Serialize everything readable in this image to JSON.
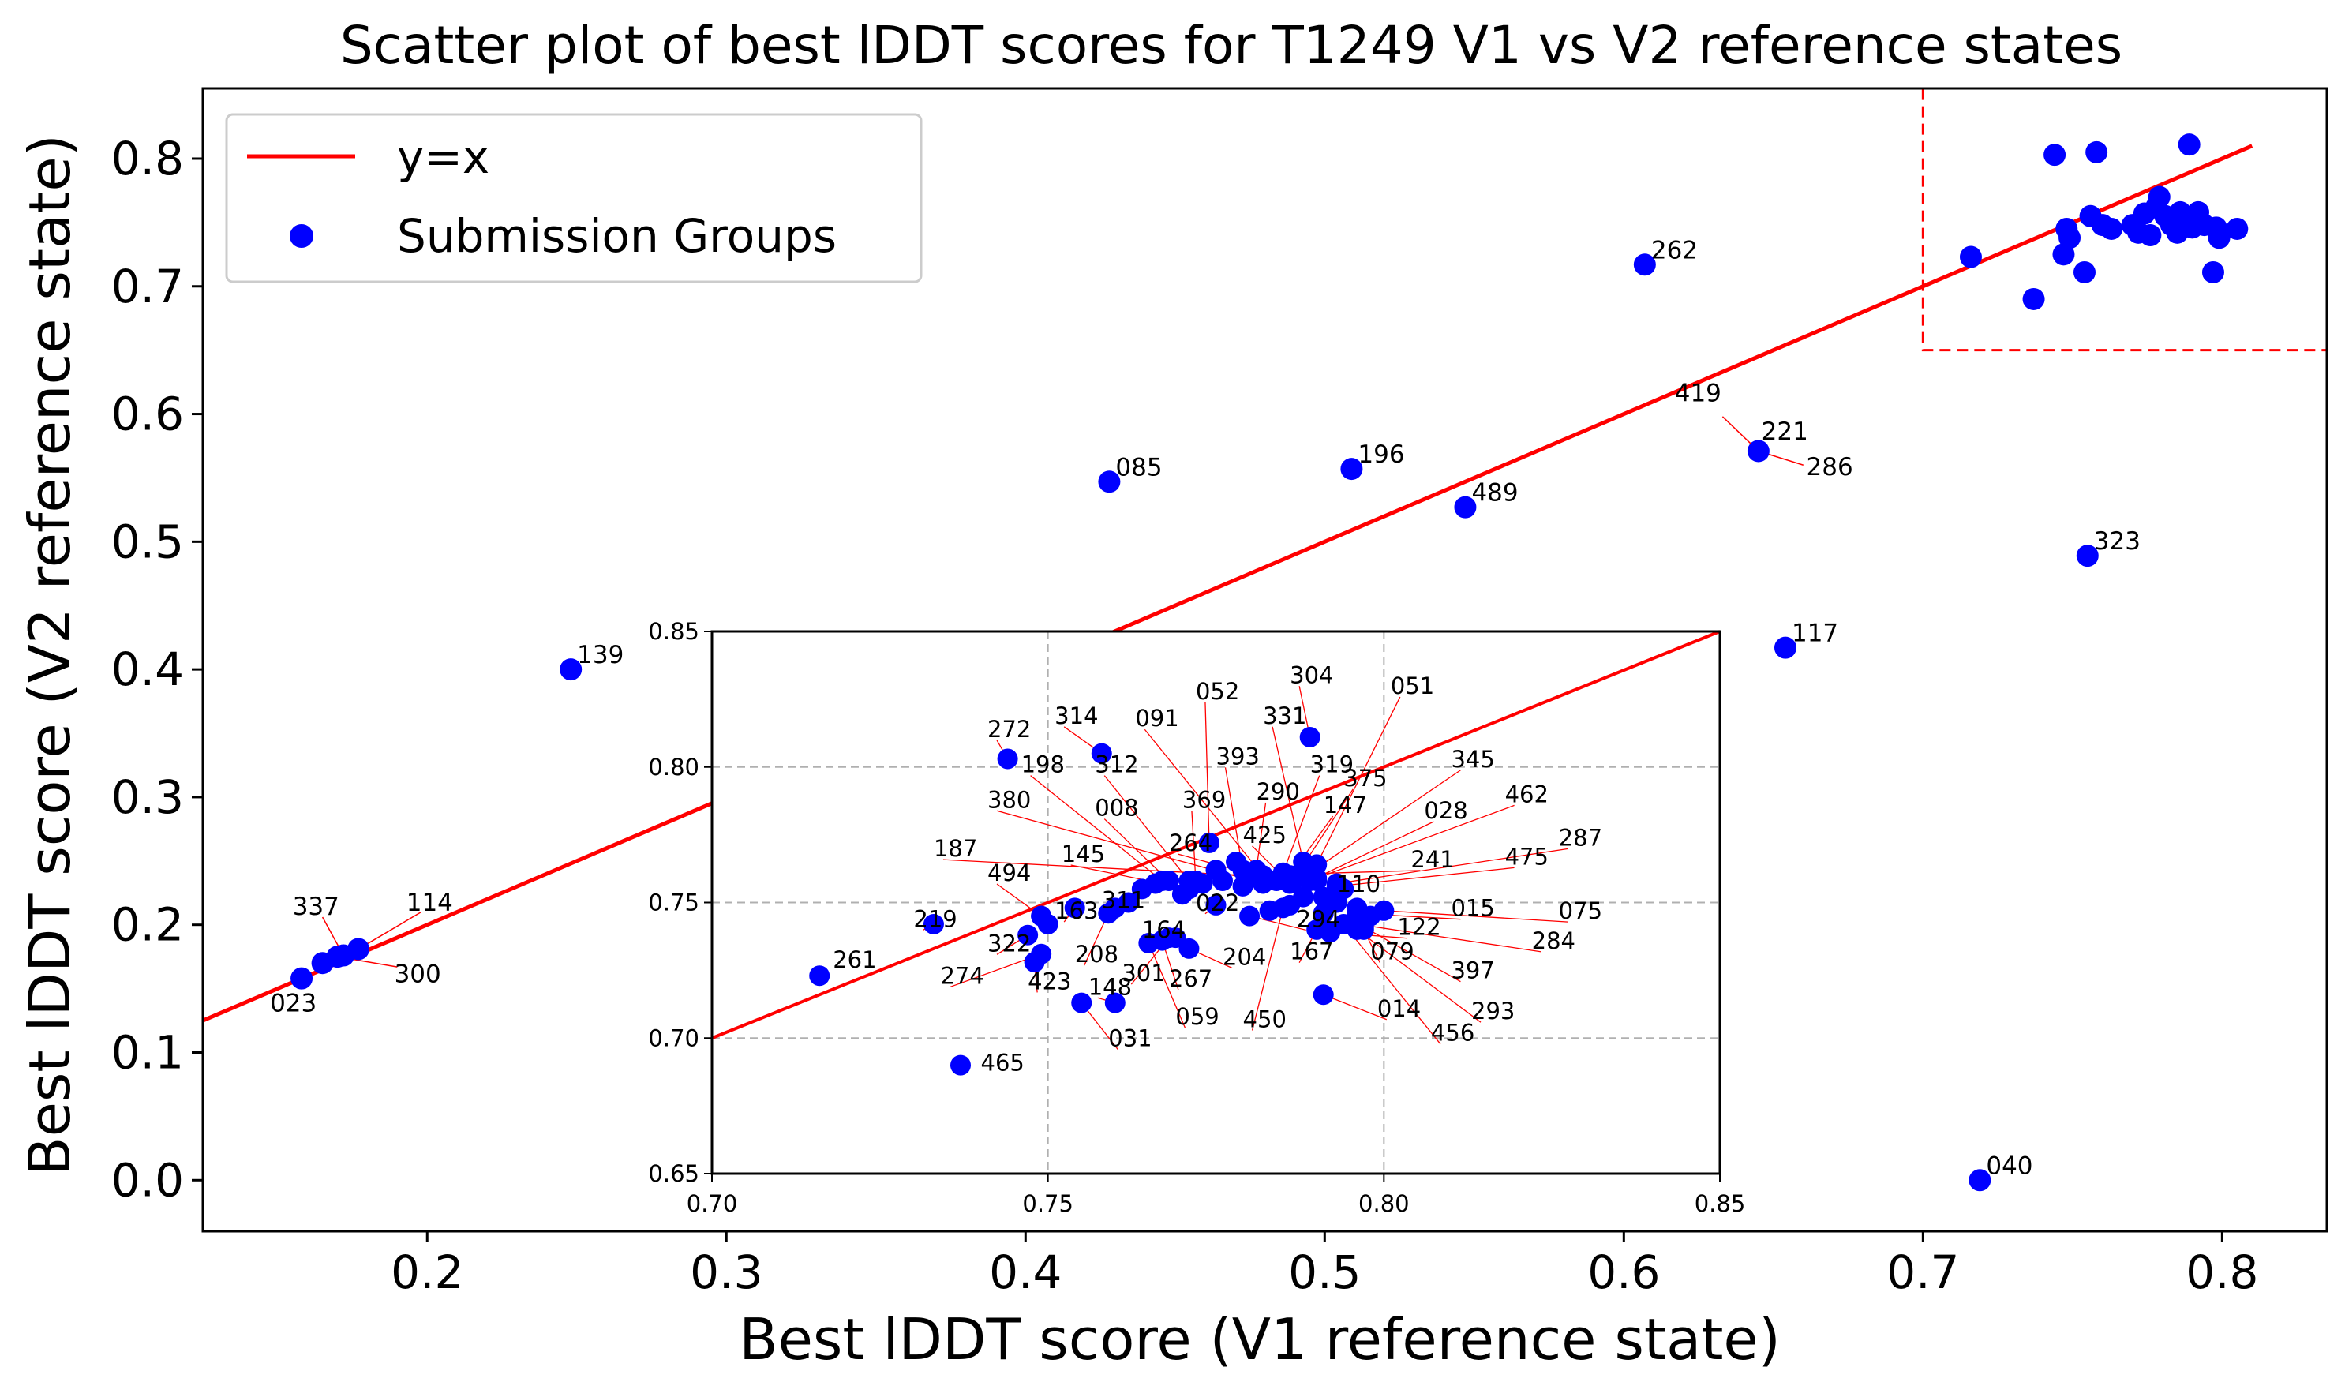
{
  "chart_data": {
    "type": "scatter",
    "title": "Scatter plot of best lDDT scores for T1249 V1 vs V2 reference states",
    "xlabel": "Best lDDT score (V1 reference state)",
    "ylabel": "Best lDDT score (V2 reference state)",
    "xlim": [
      0.125,
      0.835
    ],
    "ylim": [
      -0.04,
      0.855
    ],
    "xticks": [
      "0.2",
      "0.3",
      "0.4",
      "0.5",
      "0.6",
      "0.7",
      "0.8"
    ],
    "yticks": [
      "0.0",
      "0.1",
      "0.2",
      "0.3",
      "0.4",
      "0.5",
      "0.6",
      "0.7",
      "0.8"
    ],
    "grid": false,
    "legend_position": "top-left",
    "legend": [
      "y=x",
      "Submission Groups"
    ],
    "colors": {
      "line": "#ff0000",
      "points": "#0000ff",
      "annotation_arrow": "#ff0000",
      "highlight_box": "#ff0000"
    },
    "reference_line": {
      "label": "y=x",
      "x": [
        0.125,
        0.81
      ],
      "y": [
        0.125,
        0.81
      ]
    },
    "highlight_box": {
      "x": [
        0.7,
        0.835
      ],
      "y": [
        0.65,
        0.855
      ]
    },
    "series": [
      {
        "name": "Submission Groups",
        "points": [
          {
            "x": 0.158,
            "y": 0.158,
            "label": "023"
          },
          {
            "x": 0.165,
            "y": 0.17,
            "label": ""
          },
          {
            "x": 0.172,
            "y": 0.176,
            "label": "337"
          },
          {
            "x": 0.177,
            "y": 0.181,
            "label": "114"
          },
          {
            "x": 0.17,
            "y": 0.175,
            "label": "300"
          },
          {
            "x": 0.248,
            "y": 0.4,
            "label": "139"
          },
          {
            "x": 0.428,
            "y": 0.547,
            "label": "085"
          },
          {
            "x": 0.509,
            "y": 0.557,
            "label": "196"
          },
          {
            "x": 0.547,
            "y": 0.527,
            "label": "489"
          },
          {
            "x": 0.607,
            "y": 0.717,
            "label": "262"
          },
          {
            "x": 0.645,
            "y": 0.571,
            "label": "221"
          },
          {
            "x": 0.654,
            "y": 0.417,
            "label": "117"
          },
          {
            "x": 0.755,
            "y": 0.489,
            "label": "323"
          },
          {
            "x": 0.719,
            "y": 0.0,
            "label": "040"
          }
        ]
      }
    ],
    "inset": {
      "xlim": [
        0.7,
        0.85
      ],
      "ylim": [
        0.65,
        0.85
      ],
      "xticks": [
        "0.70",
        "0.75",
        "0.80",
        "0.85"
      ],
      "yticks": [
        "0.65",
        "0.70",
        "0.75",
        "0.80",
        "0.85"
      ],
      "grid": true,
      "points": [
        {
          "x": 0.716,
          "y": 0.723,
          "label": "261",
          "lx": 0.718,
          "ly": 0.726
        },
        {
          "x": 0.737,
          "y": 0.69,
          "label": "465",
          "lx": 0.74,
          "ly": 0.688
        },
        {
          "x": 0.744,
          "y": 0.803,
          "label": "272",
          "lx": 0.741,
          "ly": 0.811
        },
        {
          "x": 0.758,
          "y": 0.805,
          "label": "314",
          "lx": 0.751,
          "ly": 0.816
        },
        {
          "x": 0.789,
          "y": 0.811,
          "label": "304",
          "lx": 0.786,
          "ly": 0.831
        },
        {
          "x": 0.774,
          "y": 0.772,
          "label": "052",
          "lx": 0.772,
          "ly": 0.825
        },
        {
          "x": 0.788,
          "y": 0.765,
          "label": "331",
          "lx": 0.782,
          "ly": 0.816
        },
        {
          "x": 0.79,
          "y": 0.764,
          "label": "051",
          "lx": 0.801,
          "ly": 0.827
        },
        {
          "x": 0.782,
          "y": 0.76,
          "label": "091",
          "lx": 0.763,
          "ly": 0.815
        },
        {
          "x": 0.779,
          "y": 0.762,
          "label": "393",
          "lx": 0.775,
          "ly": 0.801
        },
        {
          "x": 0.785,
          "y": 0.761,
          "label": "319",
          "lx": 0.789,
          "ly": 0.798
        },
        {
          "x": 0.767,
          "y": 0.758,
          "label": "198",
          "lx": 0.746,
          "ly": 0.798
        },
        {
          "x": 0.771,
          "y": 0.758,
          "label": "312",
          "lx": 0.757,
          "ly": 0.798
        },
        {
          "x": 0.787,
          "y": 0.76,
          "label": "375",
          "lx": 0.794,
          "ly": 0.793
        },
        {
          "x": 0.789,
          "y": 0.761,
          "label": "345",
          "lx": 0.81,
          "ly": 0.8
        },
        {
          "x": 0.781,
          "y": 0.762,
          "label": "290",
          "lx": 0.781,
          "ly": 0.788
        },
        {
          "x": 0.772,
          "y": 0.758,
          "label": "369",
          "lx": 0.77,
          "ly": 0.785
        },
        {
          "x": 0.786,
          "y": 0.76,
          "label": "147",
          "lx": 0.791,
          "ly": 0.783
        },
        {
          "x": 0.79,
          "y": 0.759,
          "label": "462",
          "lx": 0.818,
          "ly": 0.787
        },
        {
          "x": 0.789,
          "y": 0.758,
          "label": "028",
          "lx": 0.806,
          "ly": 0.781
        },
        {
          "x": 0.782,
          "y": 0.757,
          "label": "380",
          "lx": 0.741,
          "ly": 0.785
        },
        {
          "x": 0.768,
          "y": 0.758,
          "label": "008",
          "lx": 0.757,
          "ly": 0.782
        },
        {
          "x": 0.781,
          "y": 0.76,
          "label": "264",
          "lx": 0.768,
          "ly": 0.769
        },
        {
          "x": 0.786,
          "y": 0.757,
          "label": "425",
          "lx": 0.779,
          "ly": 0.772
        },
        {
          "x": 0.793,
          "y": 0.757,
          "label": "287",
          "lx": 0.826,
          "ly": 0.771
        },
        {
          "x": 0.787,
          "y": 0.759,
          "label": "187",
          "lx": 0.733,
          "ly": 0.767
        },
        {
          "x": 0.771,
          "y": 0.755,
          "label": "145",
          "lx": 0.752,
          "ly": 0.765
        },
        {
          "x": 0.78,
          "y": 0.76,
          "label": "241",
          "lx": 0.804,
          "ly": 0.763
        },
        {
          "x": 0.793,
          "y": 0.756,
          "label": "475",
          "lx": 0.818,
          "ly": 0.764
        },
        {
          "x": 0.749,
          "y": 0.745,
          "label": "494",
          "lx": 0.741,
          "ly": 0.758
        },
        {
          "x": 0.791,
          "y": 0.752,
          "label": "110",
          "lx": 0.793,
          "ly": 0.754
        },
        {
          "x": 0.775,
          "y": 0.749,
          "label": "022",
          "lx": 0.772,
          "ly": 0.747
        },
        {
          "x": 0.754,
          "y": 0.748,
          "label": "163",
          "lx": 0.751,
          "ly": 0.744
        },
        {
          "x": 0.76,
          "y": 0.748,
          "label": "311",
          "lx": 0.758,
          "ly": 0.748
        },
        {
          "x": 0.78,
          "y": 0.745,
          "label": "294",
          "lx": 0.787,
          "ly": 0.741
        },
        {
          "x": 0.796,
          "y": 0.746,
          "label": "015",
          "lx": 0.81,
          "ly": 0.745
        },
        {
          "x": 0.8,
          "y": 0.747,
          "label": "075",
          "lx": 0.826,
          "ly": 0.744
        },
        {
          "x": 0.733,
          "y": 0.742,
          "label": "219",
          "lx": 0.73,
          "ly": 0.741
        },
        {
          "x": 0.792,
          "y": 0.739,
          "label": "122",
          "lx": 0.802,
          "ly": 0.738
        },
        {
          "x": 0.796,
          "y": 0.742,
          "label": "284",
          "lx": 0.822,
          "ly": 0.733
        },
        {
          "x": 0.759,
          "y": 0.746,
          "label": "208",
          "lx": 0.754,
          "ly": 0.728
        },
        {
          "x": 0.769,
          "y": 0.737,
          "label": "164",
          "lx": 0.764,
          "ly": 0.737
        },
        {
          "x": 0.747,
          "y": 0.738,
          "label": "322",
          "lx": 0.741,
          "ly": 0.732
        },
        {
          "x": 0.771,
          "y": 0.733,
          "label": "204",
          "lx": 0.776,
          "ly": 0.727
        },
        {
          "x": 0.79,
          "y": 0.74,
          "label": "167",
          "lx": 0.786,
          "ly": 0.729
        },
        {
          "x": 0.797,
          "y": 0.74,
          "label": "079",
          "lx": 0.798,
          "ly": 0.729
        },
        {
          "x": 0.768,
          "y": 0.737,
          "label": "301",
          "lx": 0.761,
          "ly": 0.721
        },
        {
          "x": 0.767,
          "y": 0.736,
          "label": "267",
          "lx": 0.768,
          "ly": 0.719
        },
        {
          "x": 0.797,
          "y": 0.741,
          "label": "397",
          "lx": 0.81,
          "ly": 0.722
        },
        {
          "x": 0.749,
          "y": 0.731,
          "label": "274",
          "lx": 0.734,
          "ly": 0.72
        },
        {
          "x": 0.748,
          "y": 0.728,
          "label": "423",
          "lx": 0.747,
          "ly": 0.718
        },
        {
          "x": 0.76,
          "y": 0.713,
          "label": "148",
          "lx": 0.756,
          "ly": 0.716
        },
        {
          "x": 0.791,
          "y": 0.716,
          "label": "014",
          "lx": 0.799,
          "ly": 0.708
        },
        {
          "x": 0.796,
          "y": 0.74,
          "label": "293",
          "lx": 0.813,
          "ly": 0.707
        },
        {
          "x": 0.765,
          "y": 0.735,
          "label": "059",
          "lx": 0.769,
          "ly": 0.705
        },
        {
          "x": 0.785,
          "y": 0.748,
          "label": "450",
          "lx": 0.779,
          "ly": 0.704
        },
        {
          "x": 0.794,
          "y": 0.742,
          "label": "456",
          "lx": 0.807,
          "ly": 0.699
        },
        {
          "x": 0.755,
          "y": 0.713,
          "label": "031",
          "lx": 0.759,
          "ly": 0.697
        },
        {
          "x": 0.749,
          "y": 0.745,
          "label": "",
          "lx": 0,
          "ly": 0
        },
        {
          "x": 0.75,
          "y": 0.742,
          "label": "",
          "lx": 0,
          "ly": 0
        },
        {
          "x": 0.762,
          "y": 0.75,
          "label": "",
          "lx": 0,
          "ly": 0
        },
        {
          "x": 0.764,
          "y": 0.755,
          "label": "",
          "lx": 0,
          "ly": 0
        },
        {
          "x": 0.766,
          "y": 0.757,
          "label": "",
          "lx": 0,
          "ly": 0
        },
        {
          "x": 0.775,
          "y": 0.762,
          "label": "",
          "lx": 0,
          "ly": 0
        },
        {
          "x": 0.778,
          "y": 0.765,
          "label": "",
          "lx": 0,
          "ly": 0
        },
        {
          "x": 0.776,
          "y": 0.758,
          "label": "",
          "lx": 0,
          "ly": 0
        },
        {
          "x": 0.783,
          "y": 0.747,
          "label": "",
          "lx": 0,
          "ly": 0
        },
        {
          "x": 0.786,
          "y": 0.749,
          "label": "",
          "lx": 0,
          "ly": 0
        },
        {
          "x": 0.788,
          "y": 0.752,
          "label": "",
          "lx": 0,
          "ly": 0
        },
        {
          "x": 0.791,
          "y": 0.746,
          "label": "",
          "lx": 0,
          "ly": 0
        },
        {
          "x": 0.793,
          "y": 0.75,
          "label": "",
          "lx": 0,
          "ly": 0
        },
        {
          "x": 0.794,
          "y": 0.755,
          "label": "",
          "lx": 0,
          "ly": 0
        },
        {
          "x": 0.77,
          "y": 0.753,
          "label": "",
          "lx": 0,
          "ly": 0
        },
        {
          "x": 0.773,
          "y": 0.757,
          "label": "",
          "lx": 0,
          "ly": 0
        },
        {
          "x": 0.779,
          "y": 0.756,
          "label": "",
          "lx": 0,
          "ly": 0
        },
        {
          "x": 0.784,
          "y": 0.758,
          "label": "",
          "lx": 0,
          "ly": 0
        },
        {
          "x": 0.796,
          "y": 0.748,
          "label": "",
          "lx": 0,
          "ly": 0
        },
        {
          "x": 0.798,
          "y": 0.745,
          "label": "",
          "lx": 0,
          "ly": 0
        },
        {
          "x": 0.79,
          "y": 0.758,
          "label": "",
          "lx": 0,
          "ly": 0
        }
      ]
    }
  }
}
